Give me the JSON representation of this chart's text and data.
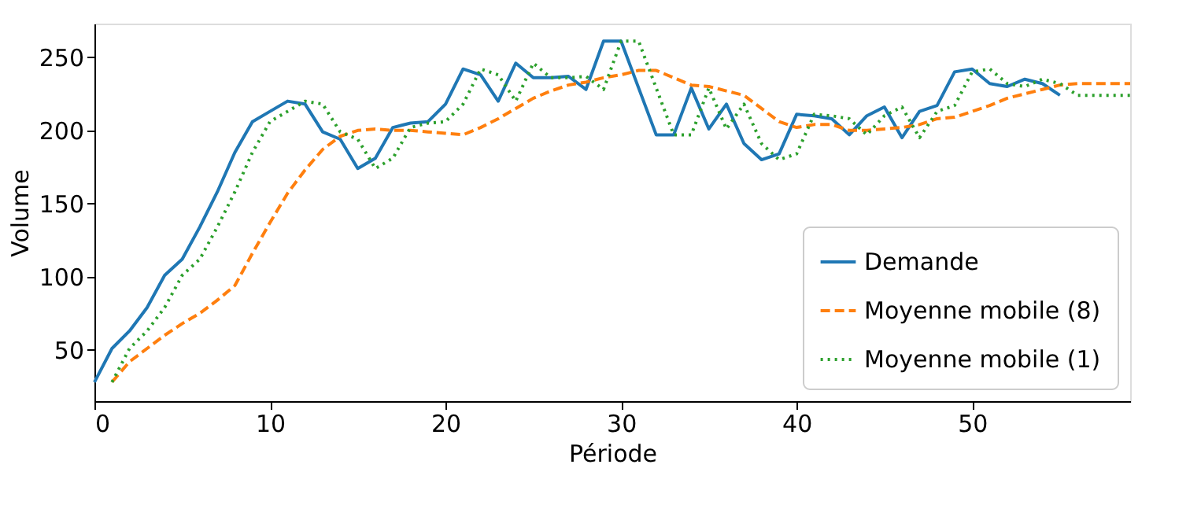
{
  "chart_data": {
    "type": "line",
    "xlabel": "Période",
    "ylabel": "Volume",
    "xlim": [
      0,
      59
    ],
    "xticks": [
      0,
      10,
      20,
      30,
      40,
      50
    ],
    "ylim": [
      15,
      273
    ],
    "yticks": [
      50,
      100,
      150,
      200,
      250
    ],
    "grid": false,
    "legend": "bottom right",
    "series": [
      {
        "name": "Demande",
        "color": "#1f77b4",
        "line_style": "solid",
        "x": [
          0,
          1,
          2,
          3,
          4,
          5,
          6,
          7,
          8,
          9,
          10,
          11,
          12,
          13,
          14,
          15,
          16,
          17,
          18,
          19,
          20,
          21,
          22,
          23,
          24,
          25,
          26,
          27,
          28,
          29,
          30,
          31,
          32,
          33,
          34,
          35,
          36,
          37,
          38,
          39,
          40,
          41,
          42,
          43,
          44,
          45,
          46,
          47,
          48,
          49,
          50,
          51,
          52,
          53,
          54,
          55
        ],
        "values": [
          28,
          51,
          63,
          79,
          101,
          112,
          134,
          158,
          185,
          206,
          213,
          220,
          218,
          199,
          194,
          174,
          181,
          202,
          205,
          206,
          218,
          242,
          238,
          220,
          246,
          236,
          236,
          237,
          228,
          261,
          261,
          229,
          197,
          197,
          229,
          201,
          218,
          191,
          180,
          184,
          211,
          210,
          208,
          197,
          210,
          216,
          195,
          213,
          217,
          240,
          242,
          232,
          230,
          235,
          232,
          224
        ]
      },
      {
        "name": "Moyenne mobile (8)",
        "color": "#ff7f0e",
        "line_style": "dashed",
        "x": [
          1,
          2,
          3,
          4,
          5,
          6,
          7,
          8,
          9,
          10,
          11,
          12,
          13,
          14,
          15,
          16,
          17,
          18,
          19,
          20,
          21,
          22,
          23,
          24,
          25,
          26,
          27,
          28,
          29,
          30,
          31,
          32,
          33,
          34,
          35,
          36,
          37,
          38,
          39,
          40,
          41,
          42,
          43,
          44,
          45,
          46,
          47,
          48,
          49,
          50,
          51,
          52,
          53,
          54,
          55,
          56,
          57,
          58,
          59
        ],
        "values": [
          28,
          42,
          51,
          60,
          68,
          75,
          84,
          94,
          116,
          137,
          157,
          173,
          187,
          196,
          200,
          201,
          200,
          200,
          199,
          198,
          197,
          202,
          208,
          215,
          222,
          227,
          231,
          233,
          236,
          238,
          241,
          241,
          236,
          231,
          230,
          227,
          224,
          215,
          206,
          202,
          204,
          204,
          200,
          200,
          201,
          202,
          204,
          208,
          209,
          213,
          217,
          222,
          225,
          228,
          231,
          232,
          232,
          232,
          232
        ]
      },
      {
        "name": "Moyenne mobile (1)",
        "color": "#2ca02c",
        "line_style": "dotted",
        "x": [
          1,
          2,
          3,
          4,
          5,
          6,
          7,
          8,
          9,
          10,
          11,
          12,
          13,
          14,
          15,
          16,
          17,
          18,
          19,
          20,
          21,
          22,
          23,
          24,
          25,
          26,
          27,
          28,
          29,
          30,
          31,
          32,
          33,
          34,
          35,
          36,
          37,
          38,
          39,
          40,
          41,
          42,
          43,
          44,
          45,
          46,
          47,
          48,
          49,
          50,
          51,
          52,
          53,
          54,
          55,
          56,
          57,
          58,
          59
        ],
        "values": [
          28,
          51,
          63,
          79,
          101,
          112,
          134,
          158,
          185,
          206,
          213,
          220,
          218,
          199,
          194,
          174,
          181,
          202,
          205,
          206,
          218,
          242,
          238,
          220,
          246,
          236,
          236,
          237,
          228,
          261,
          261,
          229,
          197,
          197,
          229,
          201,
          218,
          191,
          180,
          184,
          211,
          210,
          208,
          197,
          210,
          216,
          195,
          213,
          217,
          240,
          242,
          232,
          230,
          235,
          232,
          224,
          224,
          224,
          224
        ]
      }
    ]
  }
}
